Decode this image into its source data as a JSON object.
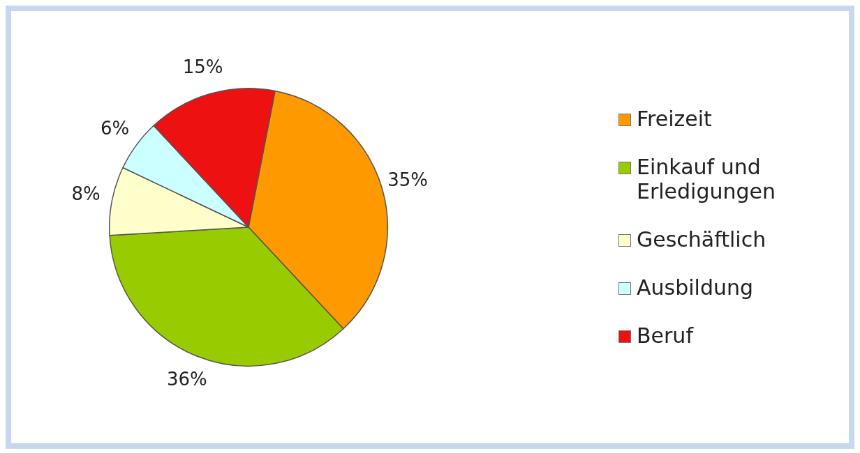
{
  "chart_data": {
    "type": "pie",
    "categories": [
      "Freizeit",
      "Einkauf und Erledigungen",
      "Geschäftlich",
      "Ausbildung",
      "Beruf"
    ],
    "values": [
      35,
      36,
      8,
      6,
      15
    ],
    "colors": [
      "#ff9900",
      "#99cc00",
      "#ffffcc",
      "#ccffff",
      "#ee1111"
    ],
    "value_labels": [
      "35%",
      "36%",
      "8%",
      "6%",
      "15%"
    ],
    "legend": "right"
  }
}
